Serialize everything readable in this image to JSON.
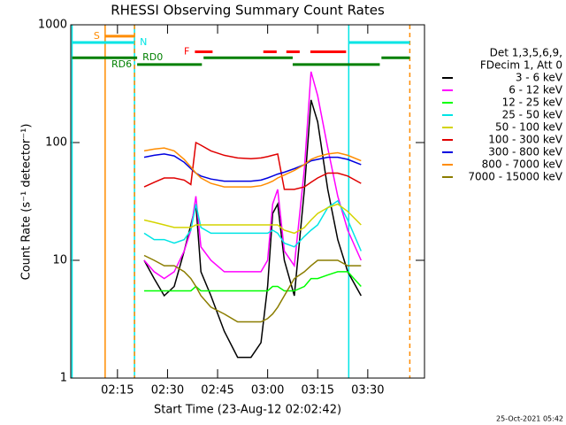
{
  "chart_data": {
    "type": "line",
    "title": "RHESSI Observing Summary Count Rates",
    "xlabel": "Start Time (23-Aug-12 02:02:42)",
    "ylabel": "Count Rate (s⁻¹ detector⁻¹)",
    "legend_header": [
      "Det 1,3,5,6,9,",
      "FDecim 1, Att 0"
    ],
    "footer": "25-Oct-2021 05:42",
    "log_y": true,
    "xlim": [
      1,
      107
    ],
    "ylim": [
      1,
      1000
    ],
    "xticks": [
      {
        "value": 15,
        "label": "02:15"
      },
      {
        "value": 30,
        "label": "02:30"
      },
      {
        "value": 45,
        "label": "02:45"
      },
      {
        "value": 60,
        "label": "03:00"
      },
      {
        "value": 75,
        "label": "03:15"
      },
      {
        "value": 90,
        "label": "03:30"
      }
    ],
    "yticks": [
      1,
      10,
      100,
      1000
    ],
    "x": [
      23,
      26,
      29,
      32,
      35,
      37,
      38.5,
      40,
      43,
      47,
      51,
      55,
      58,
      60,
      61.5,
      63,
      65,
      68,
      71,
      73,
      75,
      78,
      81,
      84,
      88
    ],
    "series": [
      {
        "name": "3 - 6 keV",
        "color": "#000000",
        "values": [
          10,
          7,
          5,
          6,
          12,
          20,
          30,
          8,
          5,
          2.5,
          1.5,
          1.5,
          2,
          6,
          25,
          30,
          10,
          5,
          40,
          230,
          150,
          40,
          15,
          8,
          5
        ]
      },
      {
        "name": "6 - 12 keV",
        "color": "#ff00ff",
        "values": [
          10,
          8,
          7,
          8,
          12,
          18,
          35,
          13,
          10,
          8,
          8,
          8,
          8,
          10,
          30,
          40,
          12,
          9,
          60,
          400,
          250,
          90,
          35,
          18,
          10
        ]
      },
      {
        "name": "12 - 25 keV",
        "color": "#00ff00",
        "values": [
          5.5,
          5.5,
          5.5,
          5.5,
          5.5,
          5.5,
          6,
          5.5,
          5.5,
          5.5,
          5.5,
          5.5,
          5.5,
          5.5,
          6,
          6,
          5.5,
          5.5,
          6,
          7,
          7,
          7.5,
          8,
          8,
          6
        ]
      },
      {
        "name": "25 - 50 keV",
        "color": "#00e5e5",
        "values": [
          17,
          15,
          15,
          14,
          15,
          18,
          30,
          19,
          17,
          17,
          17,
          17,
          17,
          17,
          18,
          17,
          14,
          13,
          16,
          18,
          20,
          28,
          32,
          22,
          12
        ]
      },
      {
        "name": "50 - 100 keV",
        "color": "#d4d400",
        "values": [
          22,
          21,
          20,
          19,
          19,
          19,
          20,
          20,
          20,
          20,
          20,
          20,
          20,
          20,
          20,
          20,
          18,
          17,
          19,
          22,
          25,
          28,
          30,
          26,
          20
        ]
      },
      {
        "name": "100 - 300 keV",
        "color": "#e00000",
        "values": [
          42,
          46,
          50,
          50,
          48,
          44,
          100,
          95,
          85,
          78,
          74,
          73,
          74,
          76,
          78,
          80,
          40,
          40,
          42,
          46,
          50,
          55,
          55,
          52,
          45
        ]
      },
      {
        "name": "300 - 800 keV",
        "color": "#0000e0",
        "values": [
          75,
          78,
          80,
          77,
          68,
          60,
          55,
          52,
          49,
          47,
          47,
          47,
          48,
          50,
          52,
          54,
          56,
          60,
          65,
          70,
          72,
          75,
          75,
          72,
          65
        ]
      },
      {
        "name": "800 - 7000 keV",
        "color": "#ff8c00",
        "values": [
          85,
          88,
          90,
          85,
          72,
          62,
          55,
          50,
          45,
          42,
          42,
          42,
          43,
          45,
          47,
          50,
          53,
          58,
          65,
          72,
          76,
          80,
          82,
          78,
          70
        ]
      },
      {
        "name": "7000 - 15000 keV",
        "color": "#8b7d00",
        "values": [
          11,
          10,
          9,
          9,
          8,
          7,
          6,
          5,
          4,
          3.5,
          3,
          3,
          3,
          3.2,
          3.5,
          4,
          5,
          7,
          8,
          9,
          10,
          10,
          10,
          9,
          9
        ]
      }
    ],
    "flags": [
      {
        "name": "S",
        "color": "#ff8c00",
        "level": 800,
        "label_side": "left",
        "segments": [
          [
            11.3,
            20.1
          ]
        ]
      },
      {
        "name": "N",
        "color": "#00e5e5",
        "level": 708,
        "label_side": "right",
        "segments": [
          [
            1.4,
            20.1
          ],
          [
            84.3,
            102.6
          ]
        ]
      },
      {
        "name": "F",
        "color": "#ff0000",
        "level": 590,
        "label_side": "left",
        "segments": [
          [
            38.2,
            43.5
          ],
          [
            58.7,
            62.7
          ],
          [
            65.6,
            69.6
          ],
          [
            72.8,
            83.5
          ]
        ]
      },
      {
        "name": "RD0",
        "color": "#008000",
        "level": 525,
        "label_side": "right",
        "segments": [
          [
            1.4,
            20.9
          ],
          [
            40.8,
            67.5
          ],
          [
            94.1,
            102.6
          ]
        ]
      },
      {
        "name": "RD6",
        "color": "#008000",
        "level": 460,
        "label_side": "left",
        "segments": [
          [
            20.9,
            40.3
          ],
          [
            67.5,
            93.6
          ]
        ]
      }
    ],
    "vertical_lines": [
      {
        "x": 1.4,
        "color": "#00e5e5",
        "dashed": false
      },
      {
        "x": 11.3,
        "color": "#ff8c00",
        "dashed": false
      },
      {
        "x": 20.1,
        "color": "#00e5e5",
        "dashed": false
      },
      {
        "x": 20.1,
        "color": "#ff8c00",
        "dashed": true
      },
      {
        "x": 84.3,
        "color": "#00e5e5",
        "dashed": false
      },
      {
        "x": 102.6,
        "color": "#ff8c00",
        "dashed": true
      }
    ]
  }
}
